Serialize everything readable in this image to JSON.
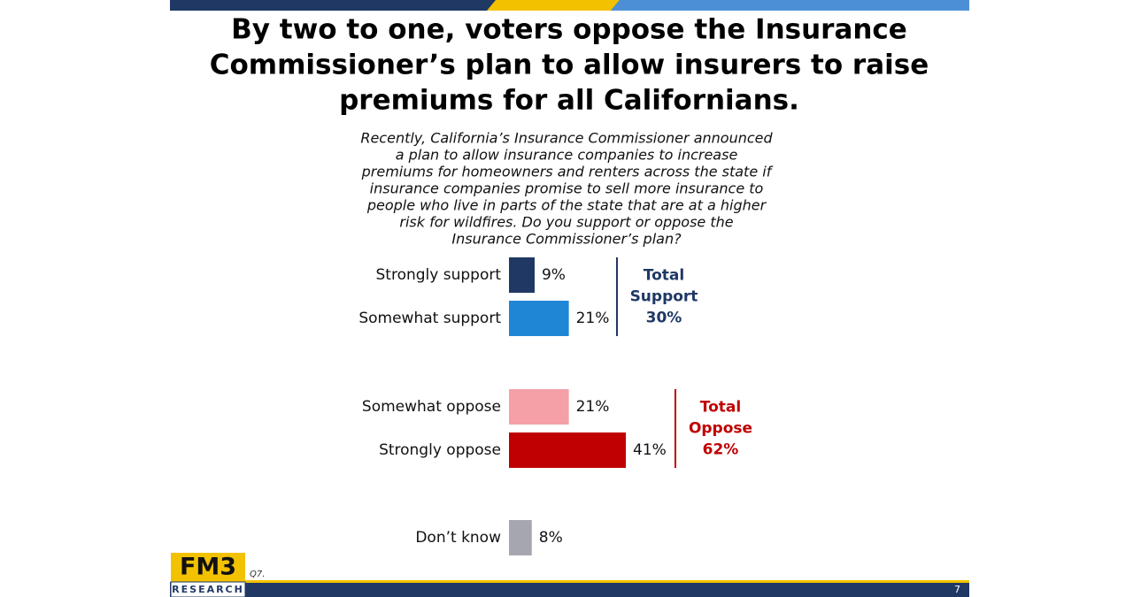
{
  "chart_data": {
    "type": "bar",
    "title": [
      "By two to one, voters oppose the Insurance",
      "Commissioner’s plan to allow insurers to raise",
      "premiums for all Californians."
    ],
    "subtitle": [
      "Recently, California’s Insurance Commissioner announced",
      "a plan to allow insurance companies to increase",
      "premiums for homeowners and renters across the state if",
      "insurance companies promise to sell more insurance to",
      "people who live in parts of the state that are at a higher",
      "risk for wildfires.  Do you support or oppose the",
      "Insurance Commissioner’s plan?"
    ],
    "categories": [
      "Strongly support",
      "Somewhat support",
      "Somewhat oppose",
      "Strongly oppose",
      "Don’t know"
    ],
    "values": [
      9,
      21,
      21,
      41,
      8
    ],
    "value_labels": [
      "9%",
      "21%",
      "21%",
      "41%",
      "8%"
    ],
    "colors": [
      "#1f3864",
      "#1f86d6",
      "#f4a0a6",
      "#c00000",
      "#a6a6b0"
    ],
    "groups": [
      {
        "label": [
          "Total",
          "Support"
        ],
        "value": 30,
        "value_label": "30%",
        "color": "#1f3864"
      },
      {
        "label": [
          "Total",
          "Oppose"
        ],
        "value": 62,
        "value_label": "62%",
        "color": "#c00000"
      }
    ],
    "logo": [
      "FM3",
      "RESEARCH"
    ],
    "footnote": "Q7.",
    "page_number": "7"
  }
}
